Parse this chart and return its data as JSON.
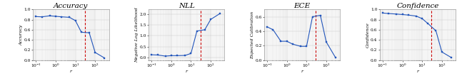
{
  "panels": [
    {
      "title": "Accuracy",
      "ylabel": "Accuracy",
      "xlabel": "r",
      "x": [
        0.1,
        0.2,
        0.5,
        1.0,
        2.0,
        5.0,
        10.0,
        20.0,
        50.0,
        100.0,
        300.0
      ],
      "y": [
        0.86,
        0.855,
        0.875,
        0.865,
        0.855,
        0.845,
        0.78,
        0.55,
        0.54,
        0.15,
        0.04
      ],
      "vline_x": 30.0,
      "ylim_min": 0.0,
      "ylim_max": 1.0,
      "yticks": [
        0.0,
        0.2,
        0.4,
        0.6,
        0.8,
        1.0
      ]
    },
    {
      "title": "NLL",
      "ylabel": "Negative Log Likelihood",
      "xlabel": "r",
      "x": [
        0.1,
        0.2,
        0.5,
        1.0,
        2.0,
        5.0,
        10.0,
        20.0,
        50.0,
        100.0,
        300.0
      ],
      "y": [
        0.14,
        0.13,
        0.08,
        0.1,
        0.1,
        0.11,
        0.2,
        1.22,
        1.28,
        1.75,
        2.02
      ],
      "vline_x": 30.0,
      "ylim_min": -0.1,
      "ylim_max": 2.2,
      "yticks": [
        0.0,
        0.5,
        1.0,
        1.5,
        2.0
      ]
    },
    {
      "title": "ECE",
      "ylabel": "Expected Calibration",
      "xlabel": "r",
      "x": [
        0.1,
        0.2,
        0.5,
        1.0,
        2.0,
        5.0,
        10.0,
        20.0,
        50.0,
        100.0,
        300.0
      ],
      "y": [
        0.46,
        0.42,
        0.26,
        0.26,
        0.22,
        0.19,
        0.19,
        0.6,
        0.62,
        0.25,
        0.03
      ],
      "vline_x": 30.0,
      "ylim_min": 0.0,
      "ylim_max": 0.7,
      "yticks": [
        0.0,
        0.2,
        0.4,
        0.6
      ]
    },
    {
      "title": "Confidence",
      "ylabel": "Confidence",
      "xlabel": "r",
      "x": [
        0.1,
        0.2,
        0.5,
        1.0,
        2.0,
        5.0,
        10.0,
        20.0,
        50.0,
        100.0,
        300.0
      ],
      "y": [
        0.93,
        0.92,
        0.91,
        0.9,
        0.89,
        0.87,
        0.82,
        0.72,
        0.58,
        0.16,
        0.05
      ],
      "vline_x": 30.0,
      "ylim_min": 0.0,
      "ylim_max": 1.0,
      "yticks": [
        0.0,
        0.2,
        0.4,
        0.6,
        0.8,
        1.0
      ]
    }
  ],
  "line_color": "#2255bb",
  "vline_color": "#cc0000",
  "marker": "s",
  "markersize": 1.8,
  "linewidth": 0.8,
  "title_fontsize": 7.5,
  "label_fontsize": 4.5,
  "tick_fontsize": 4.2,
  "grid_color": "#cccccc",
  "bg_color": "#f5f5f5"
}
